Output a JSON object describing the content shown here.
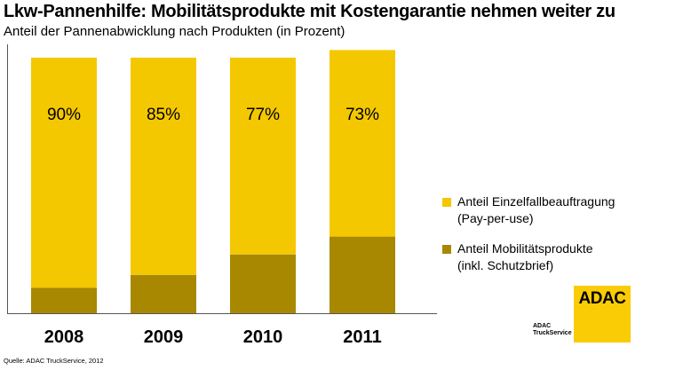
{
  "title": "Lkw-Pannenhilfe: Mobilitätsprodukte mit Kostengarantie nehmen weiter zu",
  "subtitle": "Anteil der Pannenabwicklung nach Produkten (in Prozent)",
  "source": "Quelle: ADAC TruckService, 2012",
  "logo": {
    "text": "ADAC",
    "sub_line1": "ADAC",
    "sub_line2": "TruckService"
  },
  "colors": {
    "light": "#f4c800",
    "dark": "#a88800"
  },
  "chart_data": {
    "type": "bar",
    "stacked": true,
    "title": "Lkw-Pannenhilfe: Mobilitätsprodukte mit Kostengarantie nehmen weiter zu",
    "subtitle": "Anteil der Pannenabwicklung nach Produkten (in Prozent)",
    "categories": [
      "2008",
      "2009",
      "2010",
      "2011"
    ],
    "series": [
      {
        "name": "Anteil Mobilitätsprodukte (inkl. Schutzbrief)",
        "values": [
          10,
          15,
          23,
          30
        ],
        "labels": [
          "10%",
          "15%",
          "23%",
          "30%"
        ],
        "color": "#a88800"
      },
      {
        "name": "Anteil Einzelfallbeauftragung (Pay-per-use)",
        "values": [
          90,
          85,
          77,
          73
        ],
        "labels": [
          "90%",
          "85%",
          "77%",
          "73%"
        ],
        "color": "#f4c800"
      }
    ],
    "ylim": [
      0,
      100
    ],
    "grid": false,
    "legend_position": "right"
  },
  "legend": [
    {
      "text": "Anteil Einzelfallbeauftragung\n(Pay-per-use)",
      "color": "#f4c800"
    },
    {
      "text": "Anteil Mobilitätsprodukte\n(inkl. Schutzbrief)",
      "color": "#a88800"
    }
  ]
}
